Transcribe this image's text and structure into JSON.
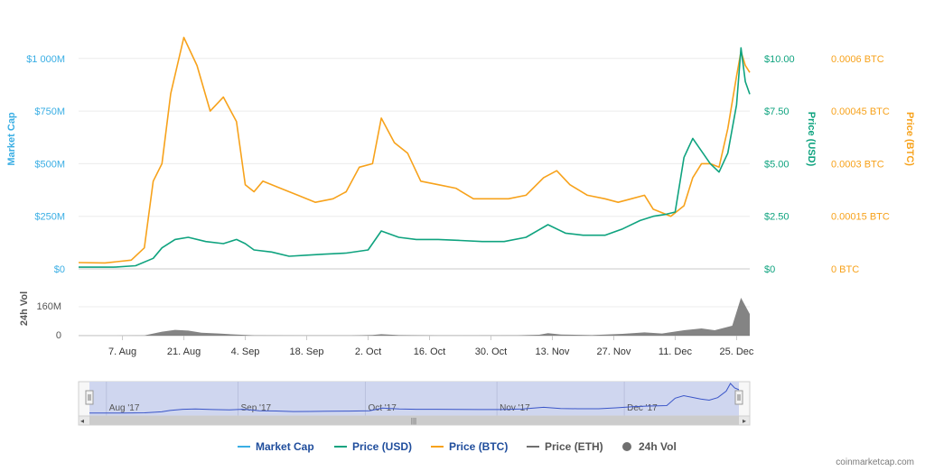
{
  "colors": {
    "market_cap": "#3aaee4",
    "price_usd": "#0fa37f",
    "price_btc": "#f7a21b",
    "price_eth": "#6f6f6f",
    "volume": "#6f6f6f",
    "navigator_fill": "#cfd6ef",
    "navigator_line": "#3a55c8"
  },
  "watermark": "coinmarketcap.com",
  "chart_data": {
    "type": "line",
    "title": "",
    "x_ticks": [
      "7. Aug",
      "21. Aug",
      "4. Sep",
      "18. Sep",
      "2. Oct",
      "16. Oct",
      "30. Oct",
      "13. Nov",
      "27. Nov",
      "11. Dec",
      "25. Dec"
    ],
    "x_start": "2017-07-28",
    "x_end": "2017-12-28",
    "axes": {
      "market_cap": {
        "label": "Market Cap",
        "ticks": [
          "$0",
          "$250M",
          "$500M",
          "$750M",
          "$1 000M"
        ]
      },
      "price_usd": {
        "label": "Price (USD)",
        "ticks": [
          "$0",
          "$2.50",
          "$5.00",
          "$7.50",
          "$10.00"
        ],
        "range": [
          0,
          10
        ]
      },
      "price_btc": {
        "label": "Price (BTC)",
        "ticks": [
          "0 BTC",
          "0.00015 BTC",
          "0.0003 BTC",
          "0.00045 BTC",
          "0.0006 BTC"
        ],
        "range": [
          0,
          0.0006
        ]
      },
      "volume": {
        "label": "24h Vol",
        "ticks": [
          "0",
          "160M"
        ],
        "range": [
          0,
          160
        ]
      }
    },
    "series": [
      {
        "name": "Price (BTC)",
        "axis": "price_btc",
        "points": [
          [
            "2017-07-28",
            1.8e-05
          ],
          [
            "2017-08-03",
            1.7e-05
          ],
          [
            "2017-08-09",
            2.5e-05
          ],
          [
            "2017-08-12",
            6e-05
          ],
          [
            "2017-08-14",
            0.00025
          ],
          [
            "2017-08-16",
            0.0003
          ],
          [
            "2017-08-18",
            0.0005
          ],
          [
            "2017-08-21",
            0.00066
          ],
          [
            "2017-08-24",
            0.00058
          ],
          [
            "2017-08-27",
            0.00045
          ],
          [
            "2017-08-30",
            0.00049
          ],
          [
            "2017-09-02",
            0.00042
          ],
          [
            "2017-09-04",
            0.00024
          ],
          [
            "2017-09-06",
            0.00022
          ],
          [
            "2017-09-08",
            0.00025
          ],
          [
            "2017-09-12",
            0.00023
          ],
          [
            "2017-09-16",
            0.00021
          ],
          [
            "2017-09-20",
            0.00019
          ],
          [
            "2017-09-24",
            0.0002
          ],
          [
            "2017-09-27",
            0.00022
          ],
          [
            "2017-09-30",
            0.00029
          ],
          [
            "2017-10-03",
            0.0003
          ],
          [
            "2017-10-05",
            0.00043
          ],
          [
            "2017-10-08",
            0.00036
          ],
          [
            "2017-10-11",
            0.00033
          ],
          [
            "2017-10-14",
            0.00025
          ],
          [
            "2017-10-18",
            0.00024
          ],
          [
            "2017-10-22",
            0.00023
          ],
          [
            "2017-10-26",
            0.0002
          ],
          [
            "2017-10-30",
            0.0002
          ],
          [
            "2017-11-03",
            0.0002
          ],
          [
            "2017-11-07",
            0.00021
          ],
          [
            "2017-11-11",
            0.00026
          ],
          [
            "2017-11-14",
            0.00028
          ],
          [
            "2017-11-17",
            0.00024
          ],
          [
            "2017-11-21",
            0.00021
          ],
          [
            "2017-11-25",
            0.0002
          ],
          [
            "2017-11-28",
            0.00019
          ],
          [
            "2017-12-01",
            0.0002
          ],
          [
            "2017-12-04",
            0.00021
          ],
          [
            "2017-12-06",
            0.00017
          ],
          [
            "2017-12-08",
            0.00016
          ],
          [
            "2017-12-10",
            0.00015
          ],
          [
            "2017-12-13",
            0.00018
          ],
          [
            "2017-12-15",
            0.00026
          ],
          [
            "2017-12-17",
            0.0003
          ],
          [
            "2017-12-19",
            0.0003
          ],
          [
            "2017-12-21",
            0.00029
          ],
          [
            "2017-12-23",
            0.0004
          ],
          [
            "2017-12-25",
            0.00055
          ],
          [
            "2017-12-26",
            0.00062
          ],
          [
            "2017-12-27",
            0.00058
          ],
          [
            "2017-12-28",
            0.00056
          ]
        ]
      },
      {
        "name": "Price (USD)",
        "axis": "price_usd",
        "points": [
          [
            "2017-07-28",
            0.08
          ],
          [
            "2017-08-05",
            0.08
          ],
          [
            "2017-08-10",
            0.15
          ],
          [
            "2017-08-14",
            0.5
          ],
          [
            "2017-08-16",
            1.0
          ],
          [
            "2017-08-19",
            1.4
          ],
          [
            "2017-08-22",
            1.5
          ],
          [
            "2017-08-26",
            1.3
          ],
          [
            "2017-08-30",
            1.2
          ],
          [
            "2017-09-02",
            1.4
          ],
          [
            "2017-09-04",
            1.2
          ],
          [
            "2017-09-06",
            0.9
          ],
          [
            "2017-09-10",
            0.8
          ],
          [
            "2017-09-14",
            0.6
          ],
          [
            "2017-09-18",
            0.65
          ],
          [
            "2017-09-22",
            0.7
          ],
          [
            "2017-09-27",
            0.75
          ],
          [
            "2017-10-02",
            0.9
          ],
          [
            "2017-10-05",
            1.8
          ],
          [
            "2017-10-09",
            1.5
          ],
          [
            "2017-10-13",
            1.4
          ],
          [
            "2017-10-18",
            1.4
          ],
          [
            "2017-10-23",
            1.35
          ],
          [
            "2017-10-28",
            1.3
          ],
          [
            "2017-11-02",
            1.3
          ],
          [
            "2017-11-07",
            1.5
          ],
          [
            "2017-11-12",
            2.1
          ],
          [
            "2017-11-16",
            1.7
          ],
          [
            "2017-11-20",
            1.6
          ],
          [
            "2017-11-25",
            1.6
          ],
          [
            "2017-11-29",
            1.9
          ],
          [
            "2017-12-03",
            2.3
          ],
          [
            "2017-12-06",
            2.5
          ],
          [
            "2017-12-09",
            2.6
          ],
          [
            "2017-12-11",
            2.7
          ],
          [
            "2017-12-13",
            5.3
          ],
          [
            "2017-12-15",
            6.2
          ],
          [
            "2017-12-17",
            5.6
          ],
          [
            "2017-12-19",
            5.0
          ],
          [
            "2017-12-21",
            4.6
          ],
          [
            "2017-12-23",
            5.5
          ],
          [
            "2017-12-25",
            7.8
          ],
          [
            "2017-12-26",
            10.5
          ],
          [
            "2017-12-27",
            8.9
          ],
          [
            "2017-12-28",
            8.3
          ]
        ]
      },
      {
        "name": "24h Vol",
        "axis": "volume",
        "points": [
          [
            "2017-07-28",
            0.5
          ],
          [
            "2017-08-12",
            1
          ],
          [
            "2017-08-16",
            22
          ],
          [
            "2017-08-19",
            32
          ],
          [
            "2017-08-22",
            28
          ],
          [
            "2017-08-25",
            16
          ],
          [
            "2017-08-29",
            12
          ],
          [
            "2017-09-02",
            6
          ],
          [
            "2017-09-06",
            2
          ],
          [
            "2017-09-16",
            1
          ],
          [
            "2017-09-28",
            1.5
          ],
          [
            "2017-10-03",
            4
          ],
          [
            "2017-10-05",
            8
          ],
          [
            "2017-10-09",
            3
          ],
          [
            "2017-10-18",
            1
          ],
          [
            "2017-11-05",
            2
          ],
          [
            "2017-11-10",
            5
          ],
          [
            "2017-11-12",
            14
          ],
          [
            "2017-11-15",
            6
          ],
          [
            "2017-11-22",
            3
          ],
          [
            "2017-11-29",
            10
          ],
          [
            "2017-12-04",
            18
          ],
          [
            "2017-12-08",
            12
          ],
          [
            "2017-12-13",
            30
          ],
          [
            "2017-12-17",
            40
          ],
          [
            "2017-12-20",
            30
          ],
          [
            "2017-12-24",
            55
          ],
          [
            "2017-12-26",
            210
          ],
          [
            "2017-12-28",
            120
          ]
        ]
      }
    ],
    "legend": {
      "position": "bottom",
      "items": [
        {
          "label": "Market Cap",
          "color": "#3aaee4",
          "symbol": "line"
        },
        {
          "label": "Price (USD)",
          "color": "#0fa37f",
          "symbol": "line"
        },
        {
          "label": "Price (BTC)",
          "color": "#f7a21b",
          "symbol": "line"
        },
        {
          "label": "Price (ETH)",
          "color": "#6f6f6f",
          "symbol": "line"
        },
        {
          "label": "24h Vol",
          "color": "#6f6f6f",
          "symbol": "dot"
        }
      ]
    },
    "navigator": {
      "labels": [
        "Aug '17",
        "Sep '17",
        "Oct '17",
        "Nov '17",
        "Dec '17"
      ]
    }
  }
}
